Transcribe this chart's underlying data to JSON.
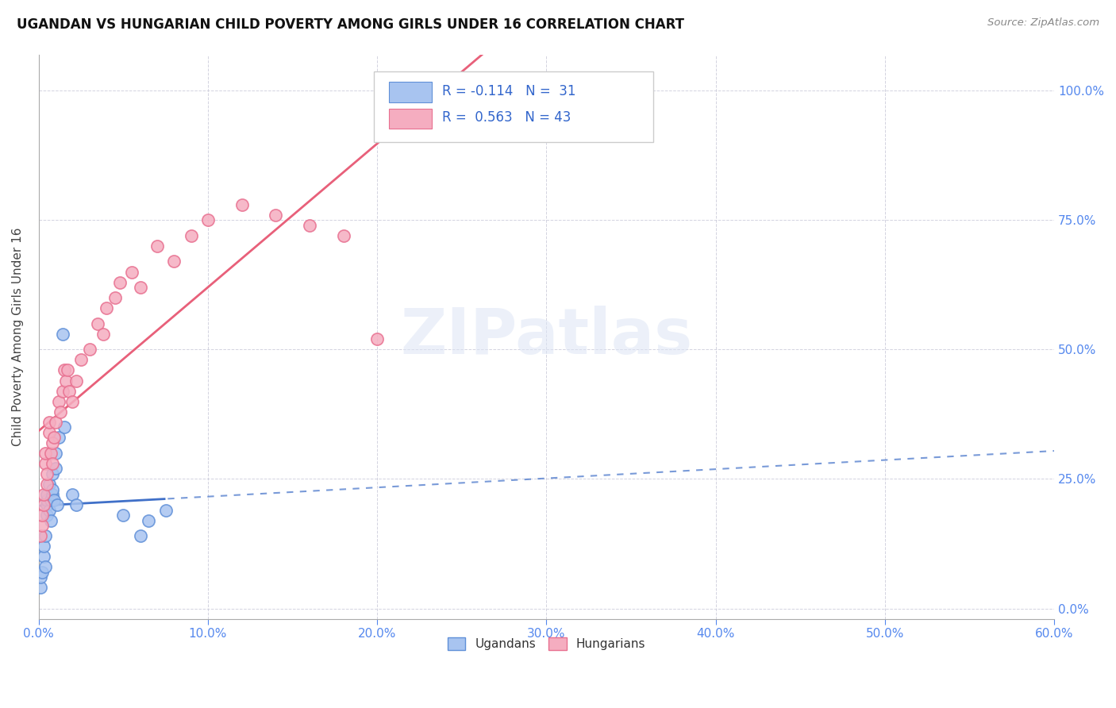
{
  "title": "UGANDAN VS HUNGARIAN CHILD POVERTY AMONG GIRLS UNDER 16 CORRELATION CHART",
  "source": "Source: ZipAtlas.com",
  "ylabel": "Child Poverty Among Girls Under 16",
  "xlim": [
    0.0,
    0.6
  ],
  "ylim": [
    -0.02,
    1.07
  ],
  "ugandan_color": "#a8c4f0",
  "hungarian_color": "#f5adc0",
  "ugandan_edge": "#6090d8",
  "hungarian_edge": "#e87090",
  "trendline_ugandan": "#4070c8",
  "trendline_hungarian": "#e8607a",
  "watermark": "ZIPatlas",
  "ugandan_x": [
    0.001,
    0.001,
    0.002,
    0.003,
    0.003,
    0.004,
    0.004,
    0.005,
    0.005,
    0.005,
    0.005,
    0.006,
    0.006,
    0.007,
    0.007,
    0.008,
    0.008,
    0.008,
    0.009,
    0.01,
    0.01,
    0.011,
    0.012,
    0.014,
    0.015,
    0.02,
    0.022,
    0.05,
    0.06,
    0.065,
    0.075
  ],
  "ugandan_y": [
    0.04,
    0.06,
    0.07,
    0.1,
    0.12,
    0.08,
    0.14,
    0.2,
    0.18,
    0.21,
    0.22,
    0.19,
    0.24,
    0.21,
    0.17,
    0.22,
    0.26,
    0.23,
    0.21,
    0.3,
    0.27,
    0.2,
    0.33,
    0.53,
    0.35,
    0.22,
    0.2,
    0.18,
    0.14,
    0.17,
    0.19
  ],
  "hungarian_x": [
    0.001,
    0.002,
    0.002,
    0.003,
    0.003,
    0.004,
    0.004,
    0.005,
    0.005,
    0.006,
    0.006,
    0.007,
    0.008,
    0.008,
    0.009,
    0.01,
    0.012,
    0.013,
    0.014,
    0.015,
    0.016,
    0.017,
    0.018,
    0.02,
    0.022,
    0.025,
    0.03,
    0.035,
    0.038,
    0.04,
    0.045,
    0.048,
    0.055,
    0.06,
    0.07,
    0.08,
    0.09,
    0.1,
    0.12,
    0.14,
    0.16,
    0.18,
    0.2
  ],
  "hungarian_y": [
    0.14,
    0.16,
    0.18,
    0.2,
    0.22,
    0.28,
    0.3,
    0.24,
    0.26,
    0.34,
    0.36,
    0.3,
    0.28,
    0.32,
    0.33,
    0.36,
    0.4,
    0.38,
    0.42,
    0.46,
    0.44,
    0.46,
    0.42,
    0.4,
    0.44,
    0.48,
    0.5,
    0.55,
    0.53,
    0.58,
    0.6,
    0.63,
    0.65,
    0.62,
    0.7,
    0.67,
    0.72,
    0.75,
    0.78,
    0.76,
    0.74,
    0.72,
    0.52
  ],
  "x_tick_vals": [
    0.0,
    0.1,
    0.2,
    0.3,
    0.4,
    0.5,
    0.6
  ],
  "y_tick_vals": [
    0.0,
    0.25,
    0.5,
    0.75,
    1.0
  ]
}
